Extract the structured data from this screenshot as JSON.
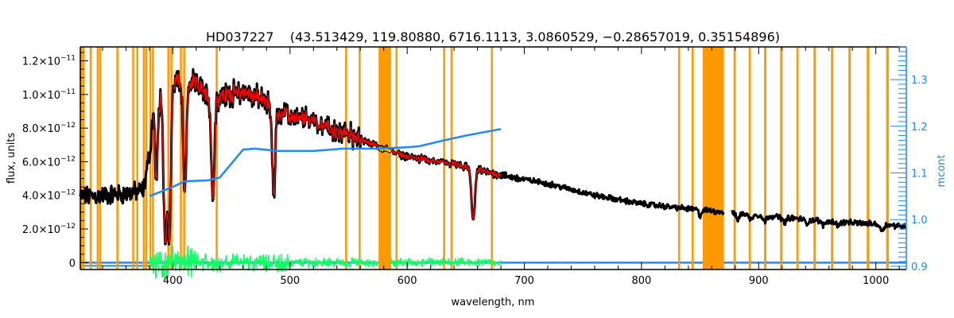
{
  "chart_data": {
    "type": "line",
    "title": "HD037227    (43.513429, 119.80880, 6716.1113, 3.0860529, −0.28657019, 0.35154896)",
    "xlabel": "wavelength, nm",
    "ylabel": "flux, units",
    "y2label": "mcont",
    "xlim": [
      321,
      1026
    ],
    "ylim": [
      -4.1e-13,
      1.283e-11
    ],
    "y2lim": [
      0.893,
      1.37
    ],
    "x_ticks": [
      400,
      500,
      600,
      700,
      800,
      900,
      1000
    ],
    "x_tick_labels": [
      "400",
      "500",
      "600",
      "700",
      "800",
      "900",
      "1000"
    ],
    "y_ticks": [
      {
        "value": 0,
        "mantissa": "0",
        "exp": ""
      },
      {
        "value": 2e-12,
        "mantissa": "2.0×10",
        "exp": "−12"
      },
      {
        "value": 4e-12,
        "mantissa": "4.0×10",
        "exp": "−12"
      },
      {
        "value": 6e-12,
        "mantissa": "6.0×10",
        "exp": "−12"
      },
      {
        "value": 8e-12,
        "mantissa": "8.0×10",
        "exp": "−12"
      },
      {
        "value": 1e-11,
        "mantissa": "1.0×10",
        "exp": "−11"
      },
      {
        "value": 1.2e-11,
        "mantissa": "1.2×10",
        "exp": "−11"
      }
    ],
    "y2_ticks": [
      0.9,
      1.0,
      1.1,
      1.2,
      1.3
    ],
    "y2_tick_labels": [
      "0.9",
      "1.0",
      "1.1",
      "1.2",
      "1.3"
    ],
    "colors": {
      "observed": "#000000",
      "model": "#ff0000",
      "masked_model": "#ffff00",
      "mcont": "#1e88ff",
      "residual": "#11ff66",
      "mask": "#ff9900",
      "zero": "#1e88ff"
    },
    "mask_bands_nm": [
      [
        320.5,
        322.5
      ],
      [
        323,
        324.5
      ],
      [
        329,
        330.5
      ],
      [
        335,
        336.5
      ],
      [
        337,
        338.5
      ],
      [
        351.8,
        353.3
      ],
      [
        365.3,
        366.8
      ],
      [
        368.8,
        370.3
      ],
      [
        374.3,
        375.8
      ],
      [
        376.3,
        377.8
      ],
      [
        380,
        381.5
      ],
      [
        382.2,
        383.2
      ],
      [
        395.3,
        396.8
      ],
      [
        397.9,
        399.4
      ],
      [
        406,
        407.5
      ],
      [
        408.8,
        410.3
      ],
      [
        436.6,
        438.1
      ],
      [
        547,
        548.6
      ],
      [
        558.6,
        560.1
      ],
      [
        575.6,
        586.2
      ],
      [
        590,
        591.5
      ],
      [
        630.7,
        632.2
      ],
      [
        637,
        638.5
      ],
      [
        671.4,
        672.9
      ],
      [
        831.2,
        832.8
      ],
      [
        842.8,
        844.4
      ],
      [
        852.2,
        870.3
      ],
      [
        878.6,
        880.4
      ],
      [
        891.5,
        893.3
      ],
      [
        904.6,
        906.6
      ],
      [
        918.3,
        920.3
      ],
      [
        932.2,
        934
      ],
      [
        946.8,
        948.8
      ],
      [
        961.7,
        963.7
      ],
      [
        976.6,
        978.6
      ],
      [
        992.2,
        994.4
      ],
      [
        1008.8,
        1011
      ]
    ],
    "series": [
      {
        "name": "observed flux",
        "axis": "left",
        "continuum_nm": [
          321,
          340,
          360,
          375,
          380,
          383,
          390,
          400,
          410,
          420,
          435,
          440,
          460,
          480,
          490,
          500,
          520,
          540,
          550,
          575,
          600,
          640,
          680,
          720,
          760,
          800,
          840,
          880,
          920,
          960,
          1000,
          1026
        ],
        "continuum_flux_e12": [
          3.9,
          4.0,
          4.1,
          4.3,
          6.5,
          8.8,
          10.2,
          10.9,
          10.8,
          10.6,
          9.6,
          9.9,
          10.2,
          9.6,
          9.0,
          8.6,
          8.5,
          7.7,
          7.65,
          6.9,
          6.3,
          5.85,
          5.2,
          4.7,
          4.0,
          3.5,
          3.2,
          2.95,
          2.7,
          2.45,
          2.3,
          2.15
        ],
        "gap_nm": [
          870.3,
          877
        ],
        "absorption_lines": [
          {
            "nm": 386,
            "depth_e12": 4.5,
            "width_nm": 1.2
          },
          {
            "nm": 393.4,
            "depth_e12": 8.8,
            "width_nm": 1.4
          },
          {
            "nm": 397,
            "depth_e12": 8.8,
            "width_nm": 1.4
          },
          {
            "nm": 410.2,
            "depth_e12": 6.8,
            "width_nm": 1.3
          },
          {
            "nm": 434.1,
            "depth_e12": 5.8,
            "width_nm": 1.3
          },
          {
            "nm": 486.1,
            "depth_e12": 5.3,
            "width_nm": 1.3
          },
          {
            "nm": 656.3,
            "depth_e12": 3.0,
            "width_nm": 1.5
          },
          {
            "nm": 850,
            "depth_e12": 0.35,
            "width_nm": 1.2
          },
          {
            "nm": 882,
            "depth_e12": 0.35,
            "width_nm": 1.5
          },
          {
            "nm": 893,
            "depth_e12": 0.3,
            "width_nm": 1.5
          },
          {
            "nm": 905,
            "depth_e12": 0.35,
            "width_nm": 1.5
          },
          {
            "nm": 922,
            "depth_e12": 0.3,
            "width_nm": 1.5
          },
          {
            "nm": 941,
            "depth_e12": 0.25,
            "width_nm": 1.5
          },
          {
            "nm": 955,
            "depth_e12": 0.25,
            "width_nm": 1.5
          },
          {
            "nm": 968,
            "depth_e12": 0.2,
            "width_nm": 1.5
          },
          {
            "nm": 1005,
            "depth_e12": 0.35,
            "width_nm": 1.5
          }
        ]
      },
      {
        "name": "model fit",
        "axis": "left",
        "range_nm": [
          380,
          680
        ]
      },
      {
        "name": "mcont",
        "axis": "right",
        "x_nm": [
          380,
          400,
          410,
          430,
          440,
          460,
          470,
          490,
          520,
          545,
          575,
          600,
          610,
          630,
          650,
          680
        ],
        "values": [
          1.05,
          1.07,
          1.082,
          1.084,
          1.09,
          1.15,
          1.152,
          1.147,
          1.147,
          1.152,
          1.152,
          1.155,
          1.157,
          1.169,
          1.18,
          1.194
        ]
      },
      {
        "name": "residual",
        "axis": "left",
        "range_nm": [
          380,
          680
        ],
        "gap_nm": [
          575.6,
          586.2
        ]
      },
      {
        "name": "zero level",
        "axis": "left",
        "value": 0
      }
    ]
  }
}
